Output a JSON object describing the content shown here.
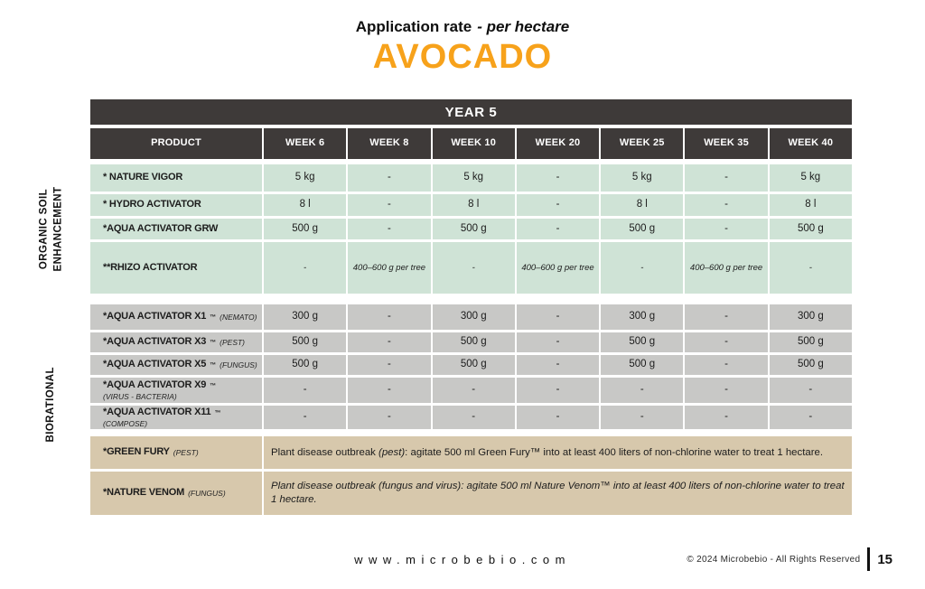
{
  "colors": {
    "accent_orange": "#F7A21B",
    "header_dark": "#3E3A39",
    "section_green": "#CFE3D6",
    "section_gray": "#C8C8C6",
    "section_tan": "#D7C8AC"
  },
  "header": {
    "title": "Application rate",
    "title_suffix": "- per hectare",
    "crop": "AVOCADO"
  },
  "side_labels": {
    "organic_line1": "ORGANIC SOIL",
    "organic_line2": "ENHANCEMENT",
    "biorational": "BIORATIONAL"
  },
  "table": {
    "year_label": "YEAR 5",
    "columns": [
      "PRODUCT",
      "WEEK 6",
      "WEEK 8",
      "WEEK 10",
      "WEEK 20",
      "WEEK 25",
      "WEEK 35",
      "WEEK 40"
    ],
    "sections": [
      {
        "name": "organic-soil-enhancement",
        "rows": [
          {
            "name": "* NATURE VIGOR",
            "tm": "",
            "note": "",
            "values": [
              "5 kg",
              "-",
              "5 kg",
              "-",
              "5 kg",
              "-",
              "5 kg"
            ]
          },
          {
            "name": "* HYDRO ACTIVATOR",
            "tm": "",
            "note": "",
            "values": [
              "8 l",
              "-",
              "8 l",
              "-",
              "8 l",
              "-",
              "8 l"
            ]
          },
          {
            "name": "*AQUA ACTIVATOR GRW",
            "tm": "",
            "note": "",
            "values": [
              "500 g",
              "-",
              "500 g",
              "-",
              "500 g",
              "-",
              "500 g"
            ]
          },
          {
            "name": "**RHIZO ACTIVATOR",
            "tm": "",
            "note": "",
            "values": [
              "-",
              "400–600 g per tree",
              "-",
              "400–600 g per tree",
              "-",
              "400–600 g per tree",
              "-"
            ]
          }
        ]
      },
      {
        "name": "biorational",
        "rows": [
          {
            "name": "*AQUA ACTIVATOR X1",
            "tm": "™",
            "note": "(NEMATO)",
            "values": [
              "300 g",
              "-",
              "300 g",
              "-",
              "300 g",
              "-",
              "300 g"
            ]
          },
          {
            "name": "*AQUA ACTIVATOR X3",
            "tm": "™",
            "note": "(PEST)",
            "values": [
              "500 g",
              "-",
              "500 g",
              "-",
              "500 g",
              "-",
              "500 g"
            ]
          },
          {
            "name": "*AQUA ACTIVATOR X5",
            "tm": "™",
            "note": "(FUNGUS)",
            "values": [
              "500 g",
              "-",
              "500 g",
              "-",
              "500 g",
              "-",
              "500 g"
            ]
          },
          {
            "name": "*AQUA ACTIVATOR X9",
            "tm": "™",
            "note": "(VIRUS - BACTERIA)",
            "values": [
              "-",
              "-",
              "-",
              "-",
              "-",
              "-",
              "-"
            ]
          },
          {
            "name": "*AQUA ACTIVATOR X11",
            "tm": "™",
            "note": "(COMPOSE)",
            "values": [
              "-",
              "-",
              "-",
              "-",
              "-",
              "-",
              "-"
            ]
          }
        ]
      },
      {
        "name": "biorational-spray",
        "rows": [
          {
            "name": "*GREEN FURY",
            "tm": "",
            "note": "(PEST)",
            "message_pre": "Plant disease outbreak ",
            "message_italic": "(pest)",
            "message_post": ": agitate 500 ml Green Fury™ into at least 400 liters of non-chlorine water to treat 1 hectare."
          },
          {
            "name": "*NATURE VENOM",
            "tm": "",
            "note": "(FUNGUS)",
            "message_full": "Plant disease outbreak (fungus and virus): agitate 500 ml Nature Venom™ into at least 400 liters of non-chlorine water to treat 1 hectare."
          }
        ]
      }
    ]
  },
  "footer": {
    "website": "www.microbebio.com",
    "copyright": "© 2024 Microbebio - All Rights Reserved",
    "page_number": "15"
  }
}
